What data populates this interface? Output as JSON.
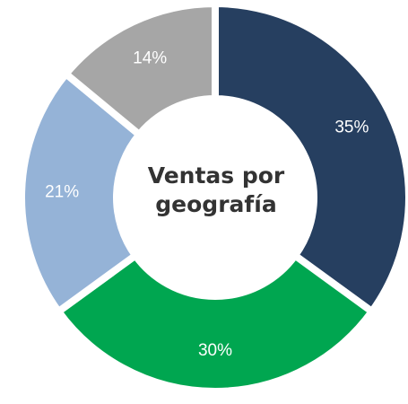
{
  "chart_data": {
    "type": "donut",
    "title": "Ventas por geografía",
    "values": [
      35,
      30,
      21,
      14
    ],
    "value_labels": [
      "35%",
      "30%",
      "21%",
      "14%"
    ],
    "colors": [
      "#263f60",
      "#00a650",
      "#95b3d7",
      "#a6a6a6"
    ]
  }
}
